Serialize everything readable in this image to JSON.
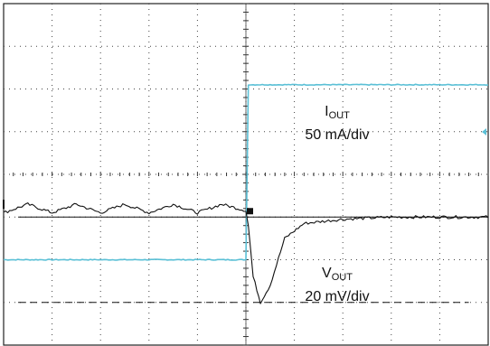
{
  "chart_data": {
    "type": "line",
    "title": "",
    "xlabel": "",
    "ylabel": "",
    "grid": true,
    "divisions": {
      "x": 10,
      "y": 8
    },
    "x": [
      -5,
      -4.5,
      -4,
      -3.5,
      -3,
      -2.5,
      -2,
      -1.5,
      -1,
      -0.5,
      0,
      0.05,
      0.15,
      0.3,
      0.5,
      0.8,
      1.2,
      2,
      3,
      4,
      5
    ],
    "series": [
      {
        "name": "I_OUT",
        "scale": "50 mA/div",
        "color": "#5bc0d6",
        "values": [
          -2.0,
          -2.0,
          -2.0,
          -2.0,
          -2.0,
          -2.0,
          -2.0,
          -2.0,
          -2.0,
          -2.0,
          -2.0,
          2.1,
          2.1,
          2.1,
          2.1,
          2.1,
          2.1,
          2.1,
          2.1,
          2.1,
          2.1
        ]
      },
      {
        "name": "V_OUT",
        "scale": "20 mV/div",
        "color": "#111111",
        "values": [
          -0.9,
          -0.7,
          -0.9,
          -0.7,
          -0.9,
          -0.7,
          -0.9,
          -0.7,
          -0.9,
          -0.7,
          -0.85,
          -1.2,
          -2.4,
          -3.0,
          -2.6,
          -1.5,
          -1.15,
          -1.05,
          -1.0,
          -1.0,
          -1.0
        ]
      }
    ],
    "markers": {
      "steady_state_level": -1.0,
      "undershoot_level": -3.0
    }
  },
  "labels": {
    "iout_main": "I",
    "iout_sub": "OUT",
    "iout_scale": "50 mA/div",
    "vout_main": "V",
    "vout_sub": "OUT",
    "vout_scale": "20 mV/div"
  }
}
